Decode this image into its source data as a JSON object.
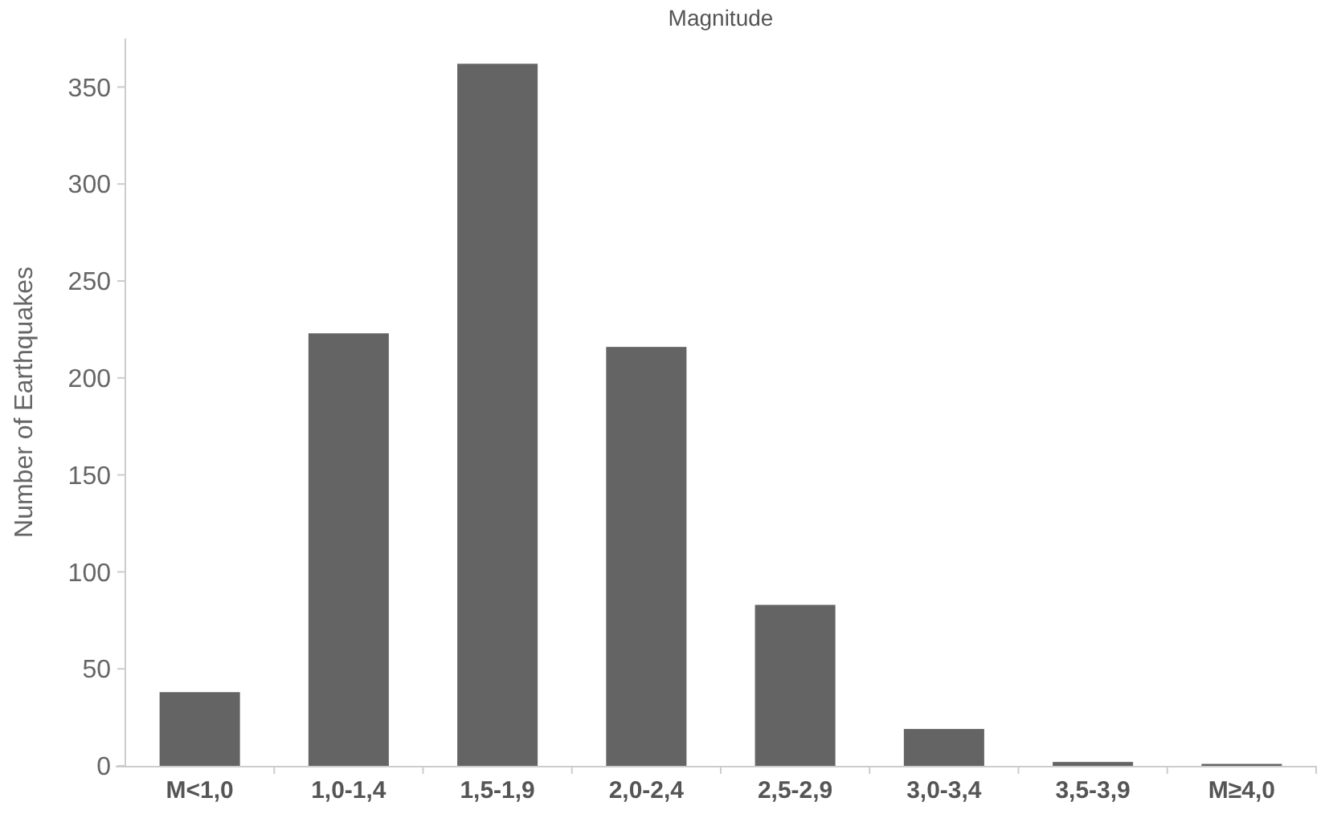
{
  "chart_data": {
    "type": "bar",
    "title": "Magnitude",
    "ylabel": "Number of Earthquakes",
    "categories": [
      "M<1,0",
      "1,0-1,4",
      "1,5-1,9",
      "2,0-2,4",
      "2,5-2,9",
      "3,0-3,4",
      "3,5-3,9",
      "M≥4,0"
    ],
    "values": [
      38,
      223,
      362,
      216,
      83,
      19,
      2,
      1
    ],
    "color": "#646464",
    "ylim": [
      0,
      375
    ],
    "yticks": [
      0,
      50,
      100,
      150,
      200,
      250,
      300,
      350
    ],
    "grid": false
  }
}
